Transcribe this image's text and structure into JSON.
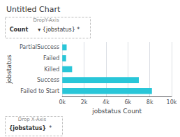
{
  "chart_data": {
    "type": "bar",
    "title": "Untitled Chart",
    "orientation": "horizontal",
    "categories": [
      "PartialSuccess",
      "Failed",
      "Killed",
      "Success",
      "Failed to Start"
    ],
    "values": [
      400,
      350,
      900,
      7000,
      8200
    ],
    "color": "#29c6d8",
    "xlabel": "jobstatus Count",
    "ylabel": "jobstatus",
    "xlim": [
      0,
      10000
    ],
    "xticks": [
      {
        "value": 0,
        "label": "0k"
      },
      {
        "value": 2000,
        "label": "2k"
      },
      {
        "value": 4000,
        "label": "4k"
      },
      {
        "value": 6000,
        "label": "6k"
      },
      {
        "value": 8000,
        "label": "8k"
      },
      {
        "value": 10000,
        "label": "10k"
      }
    ],
    "grid": true,
    "annotations": [
      [
        "DropY-Axis",
        "Count",
        "▾",
        "{jobstatus}",
        "*"
      ],
      [
        "Drop X-Axis",
        "{jobstatus}",
        "*"
      ]
    ]
  }
}
